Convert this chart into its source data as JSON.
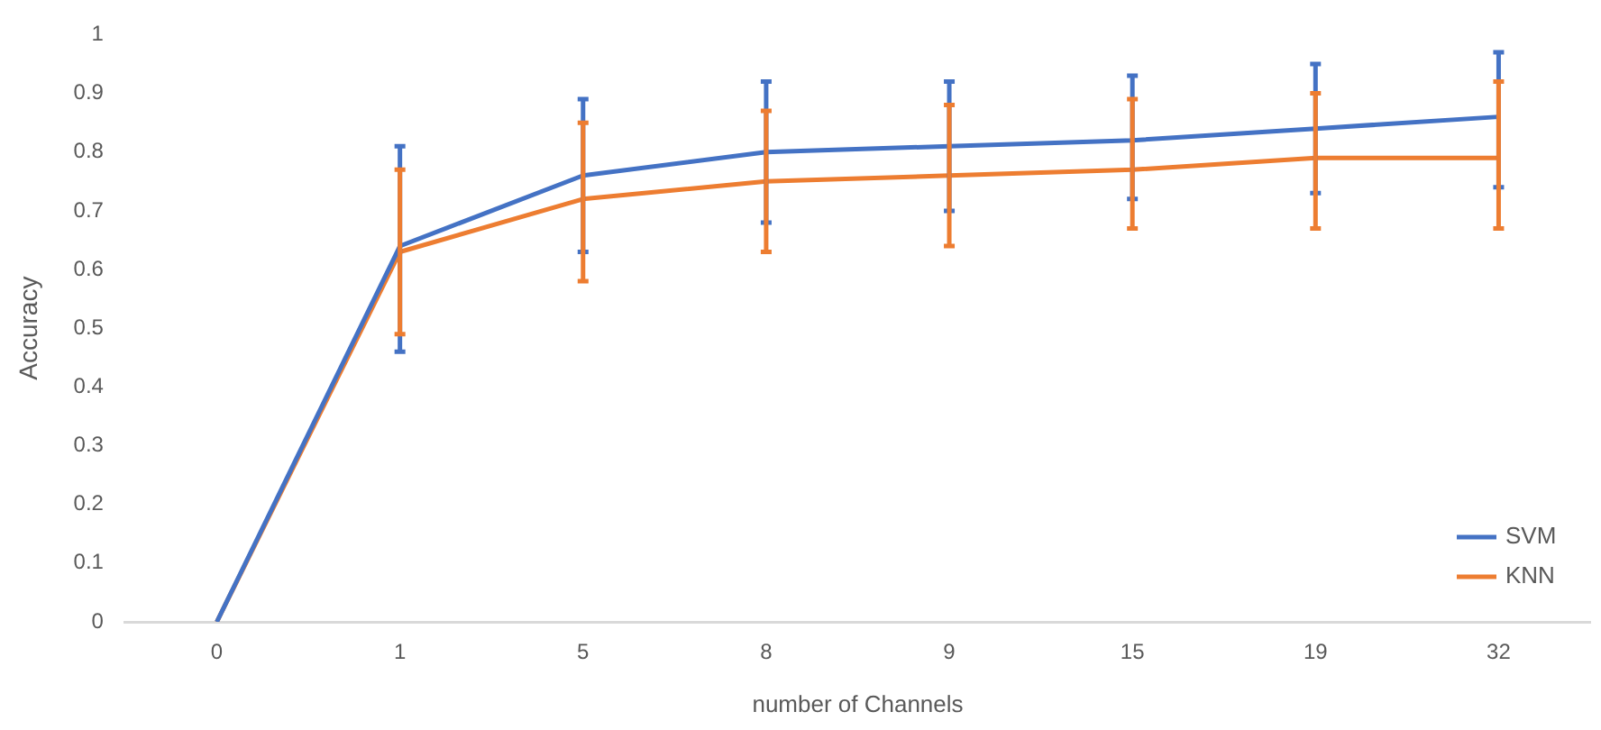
{
  "chart_data": {
    "type": "line",
    "xlabel": "number of Channels",
    "ylabel": "Accuracy",
    "categories": [
      "0",
      "1",
      "5",
      "8",
      "9",
      "15",
      "19",
      "32"
    ],
    "series": [
      {
        "name": "SVM",
        "color": "#4472c4",
        "values": [
          0,
          0.64,
          0.76,
          0.8,
          0.81,
          0.82,
          0.84,
          0.86
        ],
        "errors": [
          null,
          [
            0.46,
            0.81
          ],
          [
            0.63,
            0.89
          ],
          [
            0.68,
            0.92
          ],
          [
            0.7,
            0.92
          ],
          [
            0.72,
            0.93
          ],
          [
            0.73,
            0.95
          ],
          [
            0.74,
            0.97
          ]
        ]
      },
      {
        "name": "KNN",
        "color": "#ed7d31",
        "values": [
          0,
          0.63,
          0.72,
          0.75,
          0.76,
          0.77,
          0.79,
          0.79
        ],
        "errors": [
          null,
          [
            0.49,
            0.77
          ],
          [
            0.58,
            0.85
          ],
          [
            0.63,
            0.87
          ],
          [
            0.64,
            0.88
          ],
          [
            0.67,
            0.89
          ],
          [
            0.67,
            0.9
          ],
          [
            0.67,
            0.92
          ]
        ]
      }
    ],
    "ylim": [
      0,
      1
    ],
    "yticks": [
      0,
      0.1,
      0.2,
      0.3,
      0.4,
      0.5,
      0.6,
      0.7,
      0.8,
      0.9,
      1
    ],
    "grid": false,
    "legend": "bottom right",
    "marker": "none",
    "line_style": "solid"
  }
}
